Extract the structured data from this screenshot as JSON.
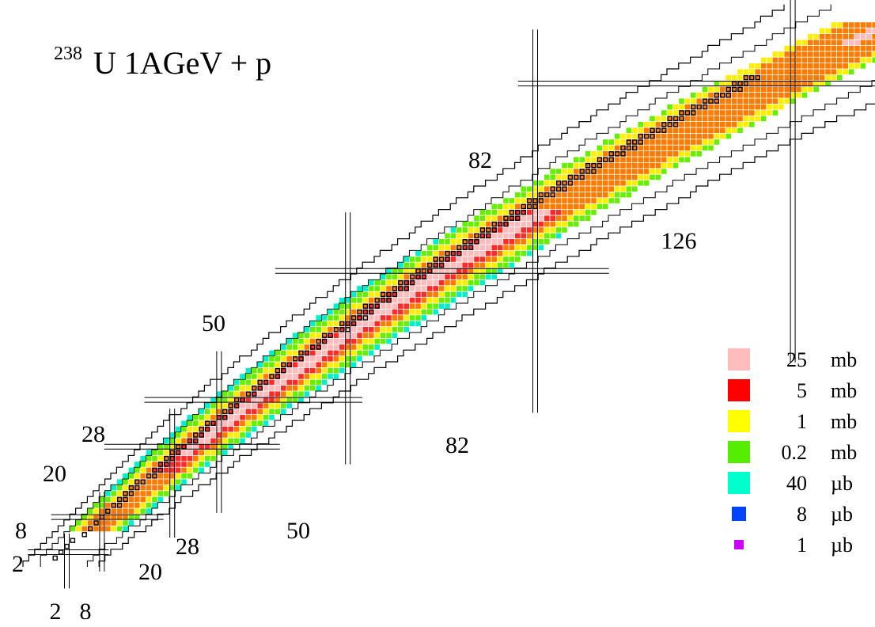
{
  "title": {
    "superscript": "238",
    "main": "U 1AGeV + p"
  },
  "chart_data": {
    "type": "heatmap",
    "description_axes": "chart of nuclides; neutron number on horizontal axis, proton number on vertical axis (no printed axis titles)",
    "magic_numbers": {
      "neutron_labels": [
        "2",
        "8",
        "20",
        "28",
        "50",
        "82",
        "126"
      ],
      "proton_labels": [
        "2",
        "8",
        "20",
        "28",
        "50",
        "82"
      ]
    },
    "legend": {
      "placement": "right",
      "entries": [
        {
          "value": "25",
          "unit": "mb",
          "color": "#ffbcbc"
        },
        {
          "value": "5",
          "unit": "mb",
          "color": "#ff0000"
        },
        {
          "value": "1",
          "unit": "mb",
          "color": "#ffff00"
        },
        {
          "value": "0.2",
          "unit": "mb",
          "color": "#55ee00"
        },
        {
          "value": "40",
          "unit": "µb",
          "color": "#00ffcc"
        },
        {
          "value": "8",
          "unit": "µb",
          "color": "#0044ff"
        },
        {
          "value": "1",
          "unit": "µb",
          "color": "#cc00ff"
        }
      ]
    },
    "band_colors": {
      "core": "#ffbcbc",
      "red": "#ff2a2a",
      "orange": "#ff7a00",
      "yellow": "#ffee00",
      "green": "#66ee00",
      "cyan": "#00eecc",
      "blue": "#0044ff",
      "purple": "#cc00ff"
    },
    "stable_isotopes_marker": "black open squares",
    "contour": "known nuclides boundary (black staircase outline)"
  }
}
